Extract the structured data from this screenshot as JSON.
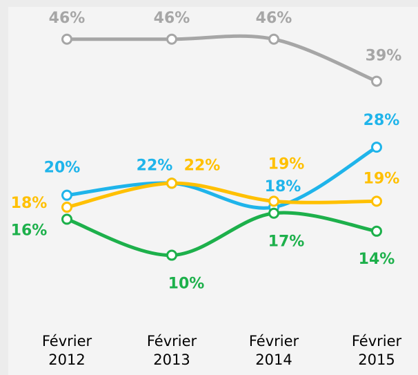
{
  "chart_data": {
    "type": "line",
    "categories": [
      "Février 2012",
      "Février 2013",
      "Février 2014",
      "Février 2015"
    ],
    "ylim": [
      5,
      50
    ],
    "series": [
      {
        "color": "#a6a6a6",
        "values": [
          46,
          46,
          46,
          39
        ],
        "value_labels": [
          "46%",
          "46%",
          "46%",
          "39%"
        ]
      },
      {
        "color": "#1fb4ea",
        "values": [
          20,
          22,
          18,
          28
        ],
        "value_labels": [
          "20%",
          "22%",
          "18%",
          "28%"
        ]
      },
      {
        "color": "#ffc000",
        "values": [
          18,
          22,
          19,
          19
        ],
        "value_labels": [
          "18%",
          "22%",
          "19%",
          "19%"
        ]
      },
      {
        "color": "#1db04b",
        "values": [
          16,
          10,
          17,
          14
        ],
        "value_labels": [
          "16%",
          "10%",
          "17%",
          "14%"
        ]
      }
    ]
  }
}
